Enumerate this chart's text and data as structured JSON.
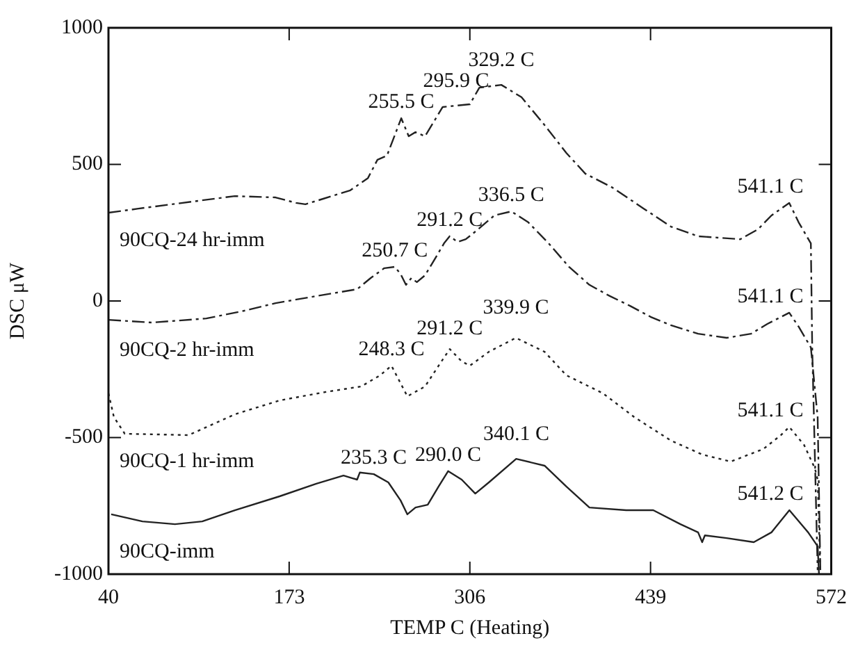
{
  "chart_data": {
    "type": "line",
    "xlabel": "TEMP C (Heating)",
    "ylabel": "DSC μW",
    "xlim": [
      40,
      572
    ],
    "xticks": [
      40,
      173,
      306,
      439,
      572
    ],
    "ylim": [
      -1000,
      1000
    ],
    "yticks": [
      -1000,
      -500,
      0,
      500,
      1000
    ],
    "marker": "none",
    "series": [
      {
        "name": "90CQ-24 hr-imm",
        "color": "#222222",
        "line_style": "dashed",
        "x": [
          40,
          62,
          102,
          133,
          163,
          178,
          185,
          198,
          218,
          231,
          238,
          245,
          255.5,
          261,
          266,
          273,
          286,
          295.9,
          306,
          313,
          329.2,
          344,
          361,
          377,
          391,
          411,
          434,
          454,
          474,
          505,
          518,
          528,
          541.1,
          548,
          557,
          558,
          560,
          562
        ],
        "values": [
          323,
          338,
          364,
          384,
          379,
          359,
          354,
          374,
          405,
          450,
          517,
          532,
          669,
          603,
          618,
          603,
          710,
          715,
          720,
          781,
          791,
          746,
          644,
          542,
          466,
          415,
          338,
          272,
          237,
          226,
          262,
          313,
          359,
          288,
          211,
          -170,
          -578,
          -985
        ]
      },
      {
        "name": "90CQ-2 hr-imm",
        "color": "#222222",
        "line_style": "dashed",
        "x": [
          40,
          72,
          112,
          138,
          163,
          193,
          223,
          233,
          243,
          250.7,
          255,
          259,
          263,
          267,
          273,
          281,
          287,
          291.2,
          297,
          303,
          312,
          324,
          336.5,
          349,
          364,
          379,
          394,
          409,
          424,
          439,
          454,
          474,
          495,
          513,
          525,
          541.1,
          548,
          557,
          562,
          564
        ],
        "values": [
          -69,
          -79,
          -64,
          -38,
          -8,
          18,
          43,
          84,
          120,
          125,
          99,
          59,
          84,
          69,
          94,
          160,
          211,
          237,
          216,
          226,
          262,
          313,
          328,
          288,
          211,
          125,
          59,
          18,
          -18,
          -58,
          -89,
          -120,
          -135,
          -120,
          -84,
          -43,
          -94,
          -170,
          -425,
          -985
        ]
      },
      {
        "name": "90CQ-1 hr-imm",
        "color": "#222222",
        "line_style": "dotted",
        "x": [
          40,
          44,
          52,
          99,
          133,
          166,
          200,
          226,
          240,
          248.3,
          260,
          273,
          283,
          291.2,
          300,
          306,
          320,
          339.9,
          361,
          377,
          404,
          427,
          454,
          477,
          498,
          522,
          535,
          541.1,
          552,
          560,
          562,
          564
        ],
        "values": [
          -338,
          -425,
          -486,
          -491,
          -415,
          -364,
          -333,
          -313,
          -272,
          -237,
          -349,
          -313,
          -237,
          -176,
          -221,
          -237,
          -186,
          -135,
          -186,
          -272,
          -338,
          -425,
          -511,
          -562,
          -588,
          -542,
          -491,
          -461,
          -527,
          -613,
          -654,
          -995
        ]
      },
      {
        "name": "90CQ-imm",
        "color": "#222222",
        "line_style": "solid",
        "x": [
          42,
          65,
          89,
          109,
          133,
          166,
          193,
          213,
          223,
          225,
          235.3,
          246,
          255,
          260,
          266,
          275,
          283,
          290.0,
          300,
          310,
          320,
          340.1,
          361,
          377,
          394,
          421,
          441,
          461,
          474,
          477,
          479,
          495,
          515,
          528,
          541.2,
          555,
          562,
          563
        ],
        "values": [
          -781,
          -807,
          -817,
          -807,
          -766,
          -715,
          -669,
          -639,
          -654,
          -628,
          -634,
          -664,
          -730,
          -781,
          -756,
          -746,
          -679,
          -623,
          -654,
          -705,
          -664,
          -578,
          -603,
          -679,
          -756,
          -766,
          -766,
          -817,
          -847,
          -883,
          -858,
          -868,
          -883,
          -847,
          -766,
          -847,
          -898,
          -1000
        ]
      }
    ],
    "annotations": [
      {
        "text": "255.5 C",
        "x": 255.5,
        "y": 669
      },
      {
        "text": "295.9 C",
        "x": 295.9,
        "y": 715
      },
      {
        "text": "329.2 C",
        "x": 329.2,
        "y": 791
      },
      {
        "text": "541.1 C",
        "x": 541.1,
        "y": 359
      },
      {
        "text": "250.7 C",
        "x": 250.7,
        "y": 125
      },
      {
        "text": "291.2 C",
        "x": 291.2,
        "y": 237
      },
      {
        "text": "336.5 C",
        "x": 336.5,
        "y": 328
      },
      {
        "text": "541.1 C",
        "x": 541.1,
        "y": -43
      },
      {
        "text": "248.3 C",
        "x": 248.3,
        "y": -237
      },
      {
        "text": "291.2 C",
        "x": 291.2,
        "y": -176
      },
      {
        "text": "339.9 C",
        "x": 339.9,
        "y": -135
      },
      {
        "text": "541.1 C",
        "x": 541.1,
        "y": -461
      },
      {
        "text": "235.3 C",
        "x": 235.3,
        "y": -634
      },
      {
        "text": "290.0 C",
        "x": 290.0,
        "y": -623
      },
      {
        "text": "340.1 C",
        "x": 340.1,
        "y": -578
      },
      {
        "text": "541.2 C",
        "x": 541.2,
        "y": -766
      }
    ]
  }
}
